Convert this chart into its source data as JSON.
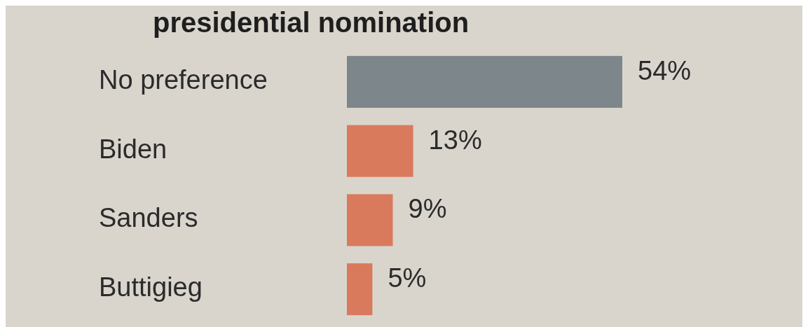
{
  "chart_data": {
    "type": "bar",
    "orientation": "horizontal",
    "title": "presidential nomination",
    "categories": [
      "No preference",
      "Biden",
      "Sanders",
      "Buttigieg"
    ],
    "values": [
      54,
      13,
      9,
      5
    ],
    "colors": [
      "#7d878b",
      "#d97a5c",
      "#d97a5c",
      "#d97a5c"
    ],
    "value_labels": [
      "54%",
      "13%",
      "9%",
      "5%"
    ],
    "tick_labels": "y"
  }
}
